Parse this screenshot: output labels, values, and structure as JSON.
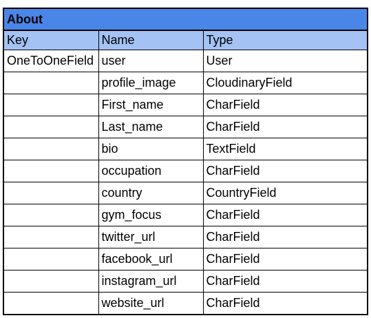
{
  "sheet": {
    "title": "About",
    "headers": [
      "Key",
      "Name",
      "Type"
    ],
    "rows": [
      {
        "key": "OneToOneField",
        "name": "user",
        "type": "User"
      },
      {
        "key": "",
        "name": "profile_image",
        "type": "CloudinaryField"
      },
      {
        "key": "",
        "name": "First_name",
        "type": "CharField"
      },
      {
        "key": "",
        "name": "Last_name",
        "type": "CharField"
      },
      {
        "key": "",
        "name": "bio",
        "type": "TextField"
      },
      {
        "key": "",
        "name": "occupation",
        "type": "CharField"
      },
      {
        "key": "",
        "name": "country",
        "type": "CountryField"
      },
      {
        "key": "",
        "name": "gym_focus",
        "type": "CharField"
      },
      {
        "key": "",
        "name": "twitter_url",
        "type": "CharField"
      },
      {
        "key": "",
        "name": "facebook_url",
        "type": "CharField"
      },
      {
        "key": "",
        "name": "instagram_url",
        "type": "CharField"
      },
      {
        "key": "",
        "name": "website_url",
        "type": "CharField"
      }
    ]
  },
  "colors": {
    "title_background": "#4a86e8",
    "header_background": "#a4c2f4"
  }
}
